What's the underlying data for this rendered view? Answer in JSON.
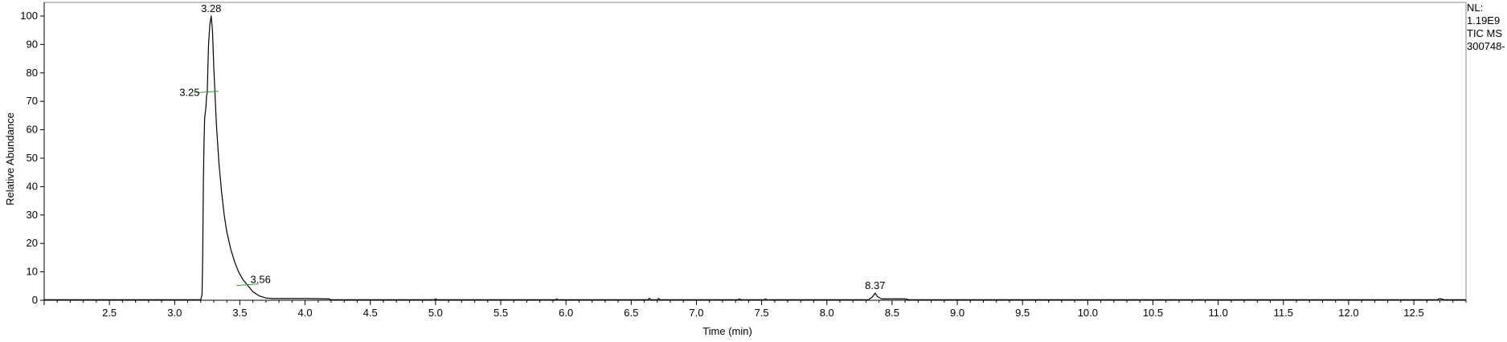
{
  "info": {
    "nl_label": "NL:",
    "nl_value": "1.19E9",
    "scan_label": "TIC  MS",
    "file_label": "300748-"
  },
  "chart_data": {
    "type": "line",
    "xlabel": "Time (min)",
    "ylabel": "Relative Abundance",
    "xlim": [
      2.0,
      12.9
    ],
    "ylim": [
      0,
      100
    ],
    "x_ticks": [
      2.5,
      3.0,
      3.5,
      4.0,
      4.5,
      5.0,
      5.5,
      6.0,
      6.5,
      7.0,
      7.5,
      8.0,
      8.5,
      9.0,
      9.5,
      10.0,
      10.5,
      11.0,
      11.5,
      12.0,
      12.5
    ],
    "x_tick_labels": [
      "2.5",
      "3.0",
      "3.5",
      "4.0",
      "4.5",
      "5.0",
      "5.5",
      "6.0",
      "6.5",
      "7.0",
      "7.5",
      "8.0",
      "8.5",
      "9.0",
      "9.5",
      "10.0",
      "10.5",
      "11.0",
      "11.5",
      "12.0",
      "12.5"
    ],
    "y_ticks": [
      0,
      10,
      20,
      30,
      40,
      50,
      60,
      70,
      80,
      90,
      100
    ],
    "y_tick_labels": [
      "0",
      "10",
      "20",
      "30",
      "40",
      "50",
      "60",
      "70",
      "80",
      "90",
      "100"
    ],
    "grid": false,
    "series": [
      {
        "color": "#000000",
        "points": [
          [
            2.0,
            0.2
          ],
          [
            3.2,
            0.2
          ],
          [
            3.21,
            2
          ],
          [
            3.215,
            15
          ],
          [
            3.22,
            40
          ],
          [
            3.225,
            55
          ],
          [
            3.23,
            64
          ],
          [
            3.235,
            66
          ],
          [
            3.24,
            68
          ],
          [
            3.245,
            72
          ],
          [
            3.25,
            73
          ],
          [
            3.255,
            82
          ],
          [
            3.26,
            90
          ],
          [
            3.27,
            97
          ],
          [
            3.28,
            100
          ],
          [
            3.29,
            95
          ],
          [
            3.3,
            82
          ],
          [
            3.32,
            62
          ],
          [
            3.34,
            48
          ],
          [
            3.36,
            38
          ],
          [
            3.38,
            30
          ],
          [
            3.4,
            24
          ],
          [
            3.43,
            18
          ],
          [
            3.46,
            13.5
          ],
          [
            3.49,
            10
          ],
          [
            3.52,
            7.5
          ],
          [
            3.56,
            5.2
          ],
          [
            3.6,
            3
          ],
          [
            3.65,
            1.5
          ],
          [
            3.7,
            0.8
          ],
          [
            3.75,
            0.6
          ],
          [
            4.0,
            0.6
          ],
          [
            4.18,
            0.5
          ],
          [
            4.2,
            0.2
          ],
          [
            4.99,
            0.2
          ],
          [
            5.0,
            0.5
          ],
          [
            5.01,
            0.2
          ],
          [
            5.92,
            0.2
          ],
          [
            5.93,
            0.5
          ],
          [
            5.94,
            0.2
          ],
          [
            6.63,
            0.2
          ],
          [
            6.64,
            0.7
          ],
          [
            6.65,
            0.2
          ],
          [
            6.7,
            0.2
          ],
          [
            6.71,
            0.6
          ],
          [
            6.72,
            0.2
          ],
          [
            7.32,
            0.2
          ],
          [
            7.33,
            0.5
          ],
          [
            7.34,
            0.2
          ],
          [
            7.52,
            0.2
          ],
          [
            7.53,
            0.5
          ],
          [
            7.54,
            0.2
          ],
          [
            8.32,
            0.2
          ],
          [
            8.35,
            1.2
          ],
          [
            8.37,
            2.5
          ],
          [
            8.39,
            1.2
          ],
          [
            8.42,
            0.5
          ],
          [
            8.6,
            0.5
          ],
          [
            8.63,
            0.2
          ],
          [
            12.68,
            0.2
          ],
          [
            12.7,
            0.6
          ],
          [
            12.73,
            0.2
          ],
          [
            12.9,
            0.2
          ]
        ]
      }
    ],
    "annotations": [
      {
        "label": "3.28",
        "x": 3.28,
        "y": 100
      },
      {
        "label": "3.25",
        "x": 3.25,
        "y": 73
      },
      {
        "label": "3.56",
        "x": 3.56,
        "y": 5.2
      },
      {
        "label": "8.37",
        "x": 8.37,
        "y": 2.5
      }
    ],
    "baseline_markers": [
      {
        "x": 3.25,
        "y": 73,
        "color": "#22aa22"
      },
      {
        "x": 3.56,
        "y": 5.2,
        "color": "#22aa22"
      }
    ]
  }
}
